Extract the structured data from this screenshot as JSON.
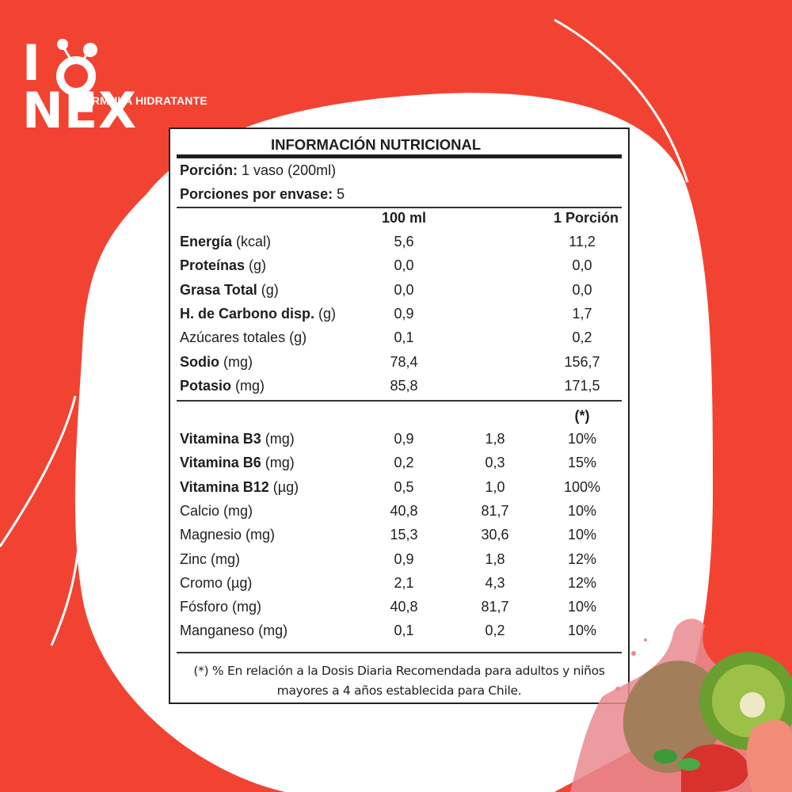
{
  "brand": {
    "name": "IONEX",
    "tagline": "FÓRMULA HIDRATANTE",
    "colors": {
      "background_red": "#f24332",
      "white": "#ffffff",
      "text": "#1e1e1e"
    }
  },
  "label": {
    "title": "INFORMACIÓN NUTRICIONAL",
    "portion_label": "Porción:",
    "portion_value": "1 vaso (200ml)",
    "portions_label": "Porciones por envase:",
    "portions_value": "5",
    "col_100ml": "100 ml",
    "col_portion": "1 Porción",
    "col_percent": "(*)",
    "macros": [
      {
        "name": "Energía",
        "unit": "(kcal)",
        "bold": true,
        "per100": "5,6",
        "perPortion": "11,2"
      },
      {
        "name": "Proteínas",
        "unit": "(g)",
        "bold": true,
        "per100": "0,0",
        "perPortion": "0,0"
      },
      {
        "name": "Grasa Total",
        "unit": "(g)",
        "bold": true,
        "per100": "0,0",
        "perPortion": "0,0"
      },
      {
        "name": "H. de Carbono disp.",
        "unit": "(g)",
        "bold": true,
        "per100": "0,9",
        "perPortion": "1,7"
      },
      {
        "name": "Azúcares totales",
        "unit": "(g)",
        "bold": false,
        "per100": "0,1",
        "perPortion": "0,2"
      },
      {
        "name": "Sodio",
        "unit": "(mg)",
        "bold": true,
        "per100": "78,4",
        "perPortion": "156,7"
      },
      {
        "name": "Potasio",
        "unit": "(mg)",
        "bold": true,
        "per100": "85,8",
        "perPortion": "171,5"
      }
    ],
    "micros": [
      {
        "name": "Vitamina B3",
        "unit": "(mg)",
        "bold": true,
        "per100": "0,9",
        "perPortion": "1,8",
        "dv": "10%"
      },
      {
        "name": "Vitamina B6",
        "unit": "(mg)",
        "bold": true,
        "per100": "0,2",
        "perPortion": "0,3",
        "dv": "15%"
      },
      {
        "name": "Vitamina B12",
        "unit": "(µg)",
        "bold": true,
        "per100": "0,5",
        "perPortion": "1,0",
        "dv": "100%"
      },
      {
        "name": "Calcio",
        "unit": "(mg)",
        "bold": false,
        "per100": "40,8",
        "perPortion": "81,7",
        "dv": "10%"
      },
      {
        "name": "Magnesio",
        "unit": "(mg)",
        "bold": false,
        "per100": "15,3",
        "perPortion": "30,6",
        "dv": "10%"
      },
      {
        "name": "Zinc",
        "unit": "(mg)",
        "bold": false,
        "per100": "0,9",
        "perPortion": "1,8",
        "dv": "12%"
      },
      {
        "name": "Cromo",
        "unit": "(µg)",
        "bold": false,
        "per100": "2,1",
        "perPortion": "4,3",
        "dv": "12%"
      },
      {
        "name": "Fósforo",
        "unit": "(mg)",
        "bold": false,
        "per100": "40,8",
        "perPortion": "81,7",
        "dv": "10%"
      },
      {
        "name": "Manganeso",
        "unit": "(mg)",
        "bold": false,
        "per100": "0,1",
        "perPortion": "0,2",
        "dv": "10%"
      }
    ],
    "footnote_line1": "(*)  % En relación a la Dosis Diaria Recomendada para adultos y niños",
    "footnote_line2": "mayores a 4 años establecida para Chile."
  },
  "decoration": {
    "fruits": [
      "kiwi",
      "kiwi-slice",
      "strawberry",
      "strawberry-half",
      "juice-splash"
    ]
  }
}
